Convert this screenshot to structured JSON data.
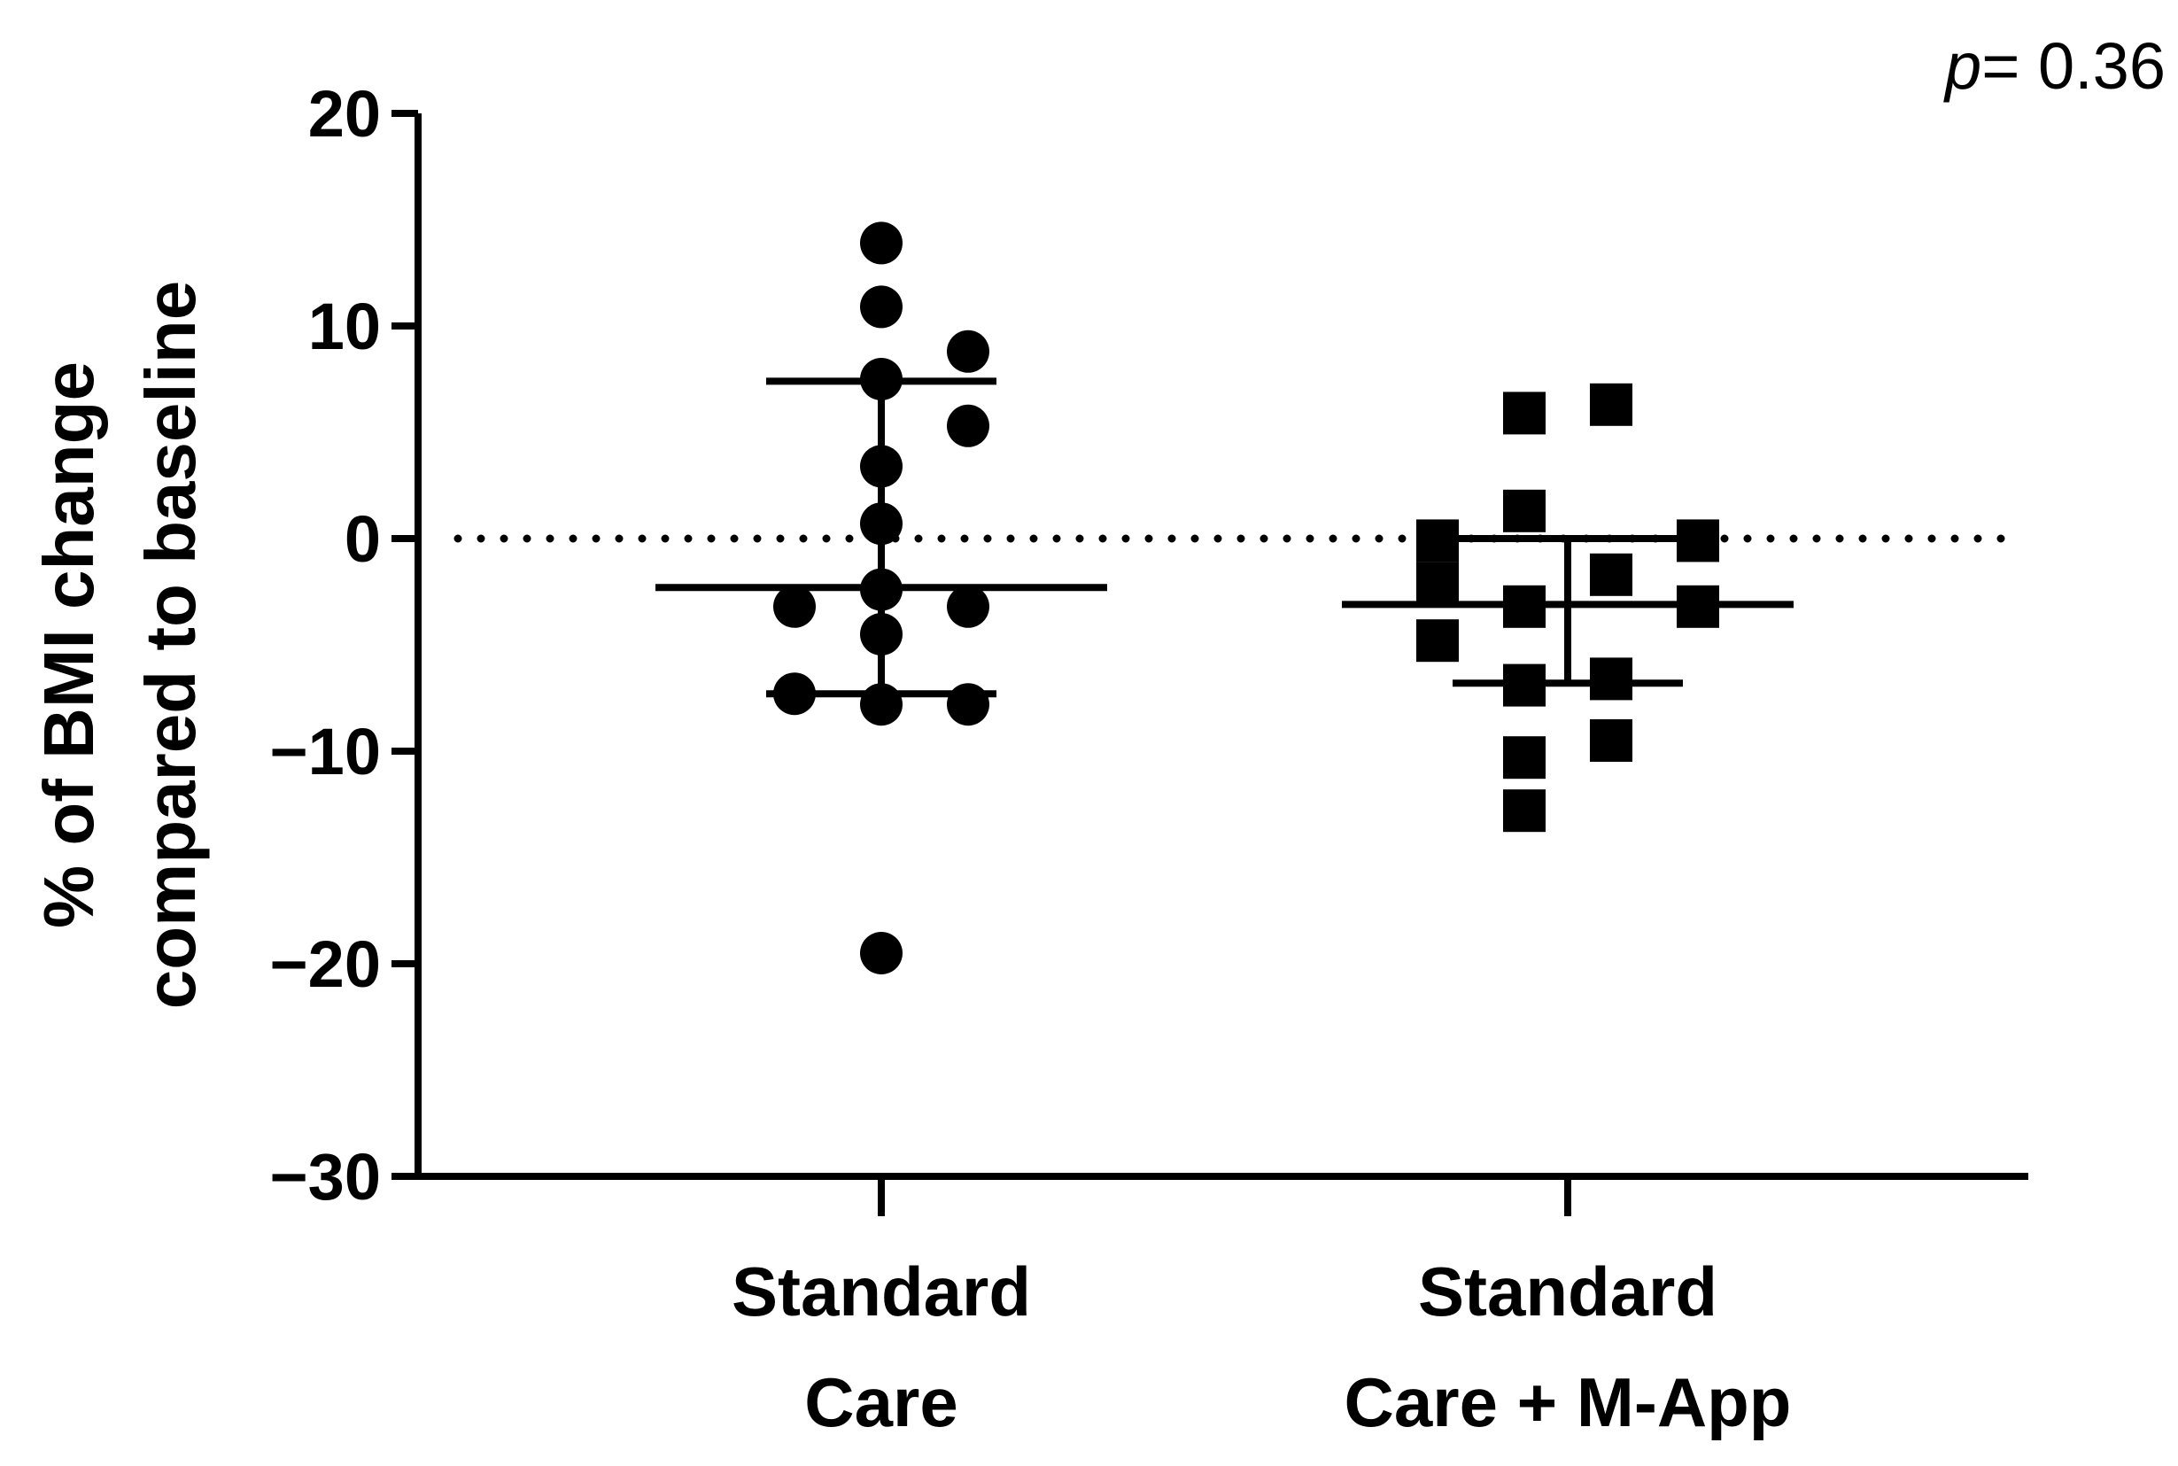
{
  "chart_data": {
    "type": "scatter",
    "title": "",
    "ylabel_lines": [
      "% of BMI change",
      "compared to baseline"
    ],
    "xlabel": "",
    "ylim": [
      -30,
      20
    ],
    "yticks": [
      20,
      10,
      0,
      -10,
      -20,
      -30
    ],
    "ytick_labels": [
      "20",
      "10",
      "0",
      "−10",
      "−20",
      "−30"
    ],
    "reference_line": {
      "y": 0,
      "style": "dotted"
    },
    "grid": false,
    "annotation": {
      "p_symbol": "p",
      "text": "= 0.36"
    },
    "categories": [
      {
        "lines": [
          "Standard",
          "Care"
        ]
      },
      {
        "lines": [
          "Standard",
          "Care + M-App"
        ]
      }
    ],
    "series": [
      {
        "category_index": 0,
        "marker": "circle",
        "points": [
          {
            "x_offset": 0,
            "y": 13.9
          },
          {
            "x_offset": 0,
            "y": 10.9
          },
          {
            "x_offset": 1,
            "y": 8.8
          },
          {
            "x_offset": 0,
            "y": 7.5
          },
          {
            "x_offset": 1,
            "y": 5.3
          },
          {
            "x_offset": 0,
            "y": 3.4
          },
          {
            "x_offset": 0,
            "y": 0.7
          },
          {
            "x_offset": 0,
            "y": -2.4
          },
          {
            "x_offset": -1,
            "y": -3.2
          },
          {
            "x_offset": 1,
            "y": -3.2
          },
          {
            "x_offset": 0,
            "y": -4.5
          },
          {
            "x_offset": -1,
            "y": -7.3
          },
          {
            "x_offset": 0,
            "y": -7.8
          },
          {
            "x_offset": 1,
            "y": -7.8
          },
          {
            "x_offset": 0,
            "y": -19.5
          }
        ],
        "median": -2.3,
        "q1": -7.3,
        "q3": 7.4
      },
      {
        "category_index": 1,
        "marker": "square",
        "points": [
          {
            "x_offset": -0.5,
            "y": 5.9
          },
          {
            "x_offset": 0.5,
            "y": 6.3
          },
          {
            "x_offset": -0.5,
            "y": 1.3
          },
          {
            "x_offset": -1.5,
            "y": -0.1
          },
          {
            "x_offset": 1.5,
            "y": -0.1
          },
          {
            "x_offset": -1.5,
            "y": -2.1
          },
          {
            "x_offset": 0.5,
            "y": -1.7
          },
          {
            "x_offset": -0.5,
            "y": -3.2
          },
          {
            "x_offset": 1.5,
            "y": -3.2
          },
          {
            "x_offset": -1.5,
            "y": -4.8
          },
          {
            "x_offset": -0.5,
            "y": -6.9
          },
          {
            "x_offset": 0.5,
            "y": -6.6
          },
          {
            "x_offset": 0.5,
            "y": -9.5
          },
          {
            "x_offset": -0.5,
            "y": -10.3
          },
          {
            "x_offset": -0.5,
            "y": -12.8
          }
        ],
        "median": -3.1,
        "q1": -6.8,
        "q3": 0.0
      }
    ],
    "colors": {
      "marker": "#000000",
      "axis": "#000000"
    }
  }
}
